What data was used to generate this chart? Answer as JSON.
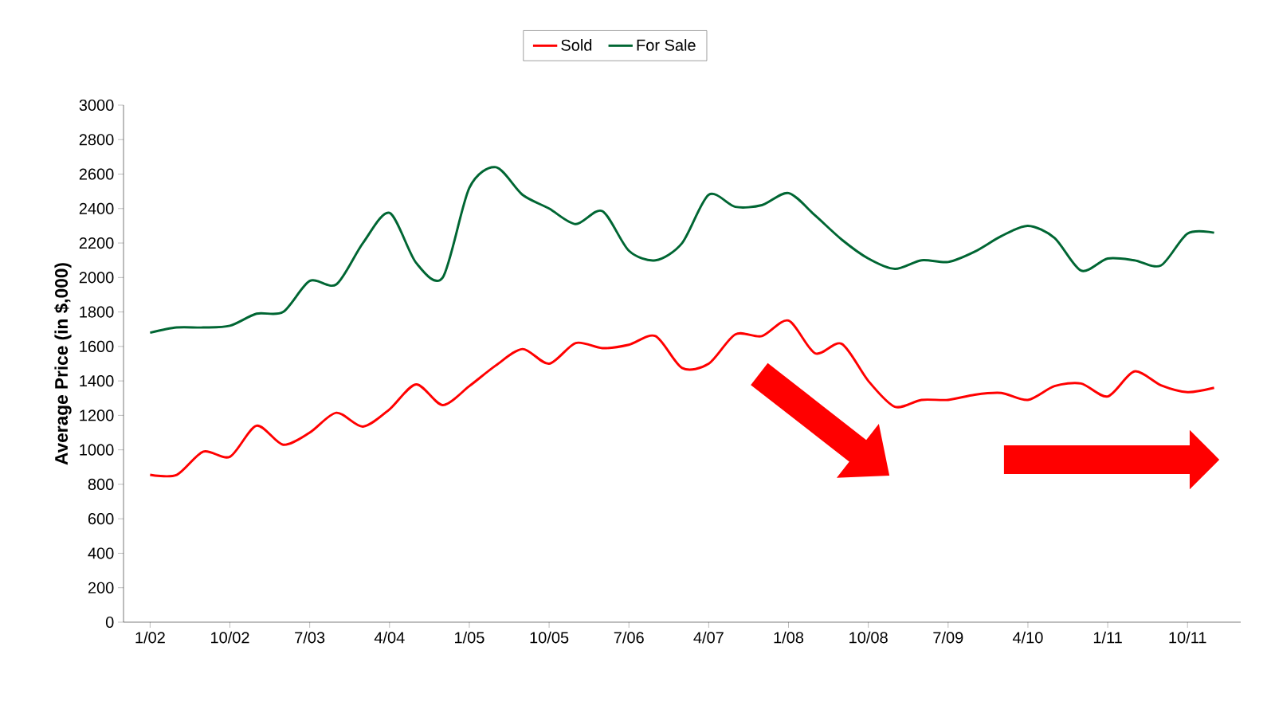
{
  "chart_data": {
    "type": "line",
    "ylabel": "Average Price (in $,000)",
    "categories": [
      "1/02",
      null,
      null,
      "10/02",
      null,
      null,
      "7/03",
      null,
      null,
      "4/04",
      null,
      null,
      "1/05",
      null,
      null,
      "10/05",
      null,
      null,
      "7/06",
      null,
      null,
      "4/07",
      null,
      null,
      "1/08",
      null,
      null,
      "10/08",
      null,
      null,
      "7/09",
      null,
      null,
      "4/10",
      null,
      null,
      "1/11",
      null,
      null,
      "10/11",
      null
    ],
    "series": [
      {
        "name": "Sold",
        "color": "#ff0000",
        "values": [
          855,
          855,
          990,
          960,
          1140,
          1030,
          1100,
          1215,
          1135,
          1235,
          1380,
          1260,
          1370,
          1490,
          1585,
          1500,
          1620,
          1590,
          1610,
          1660,
          1475,
          1500,
          1670,
          1660,
          1750,
          1560,
          1615,
          1400,
          1250,
          1290,
          1290,
          1320,
          1330,
          1290,
          1370,
          1385,
          1310,
          1455,
          1375,
          1335,
          1360
        ]
      },
      {
        "name": "For Sale",
        "color": "#006633",
        "values": [
          1680,
          1710,
          1710,
          1720,
          1790,
          1800,
          1980,
          1960,
          2200,
          2375,
          2085,
          2000,
          2520,
          2640,
          2480,
          2400,
          2310,
          2385,
          2155,
          2100,
          2200,
          2480,
          2410,
          2420,
          2490,
          2360,
          2220,
          2110,
          2050,
          2100,
          2090,
          2150,
          2240,
          2300,
          2230,
          2040,
          2110,
          2100,
          2070,
          2255,
          2260
        ]
      }
    ],
    "ylim": [
      0,
      3000
    ],
    "yticks": [
      0,
      200,
      400,
      600,
      800,
      1000,
      1200,
      1400,
      1600,
      1800,
      2000,
      2200,
      2400,
      2600,
      2800,
      3000
    ],
    "legend": "top",
    "grid": false,
    "marker": "none",
    "line_style": "solid"
  }
}
